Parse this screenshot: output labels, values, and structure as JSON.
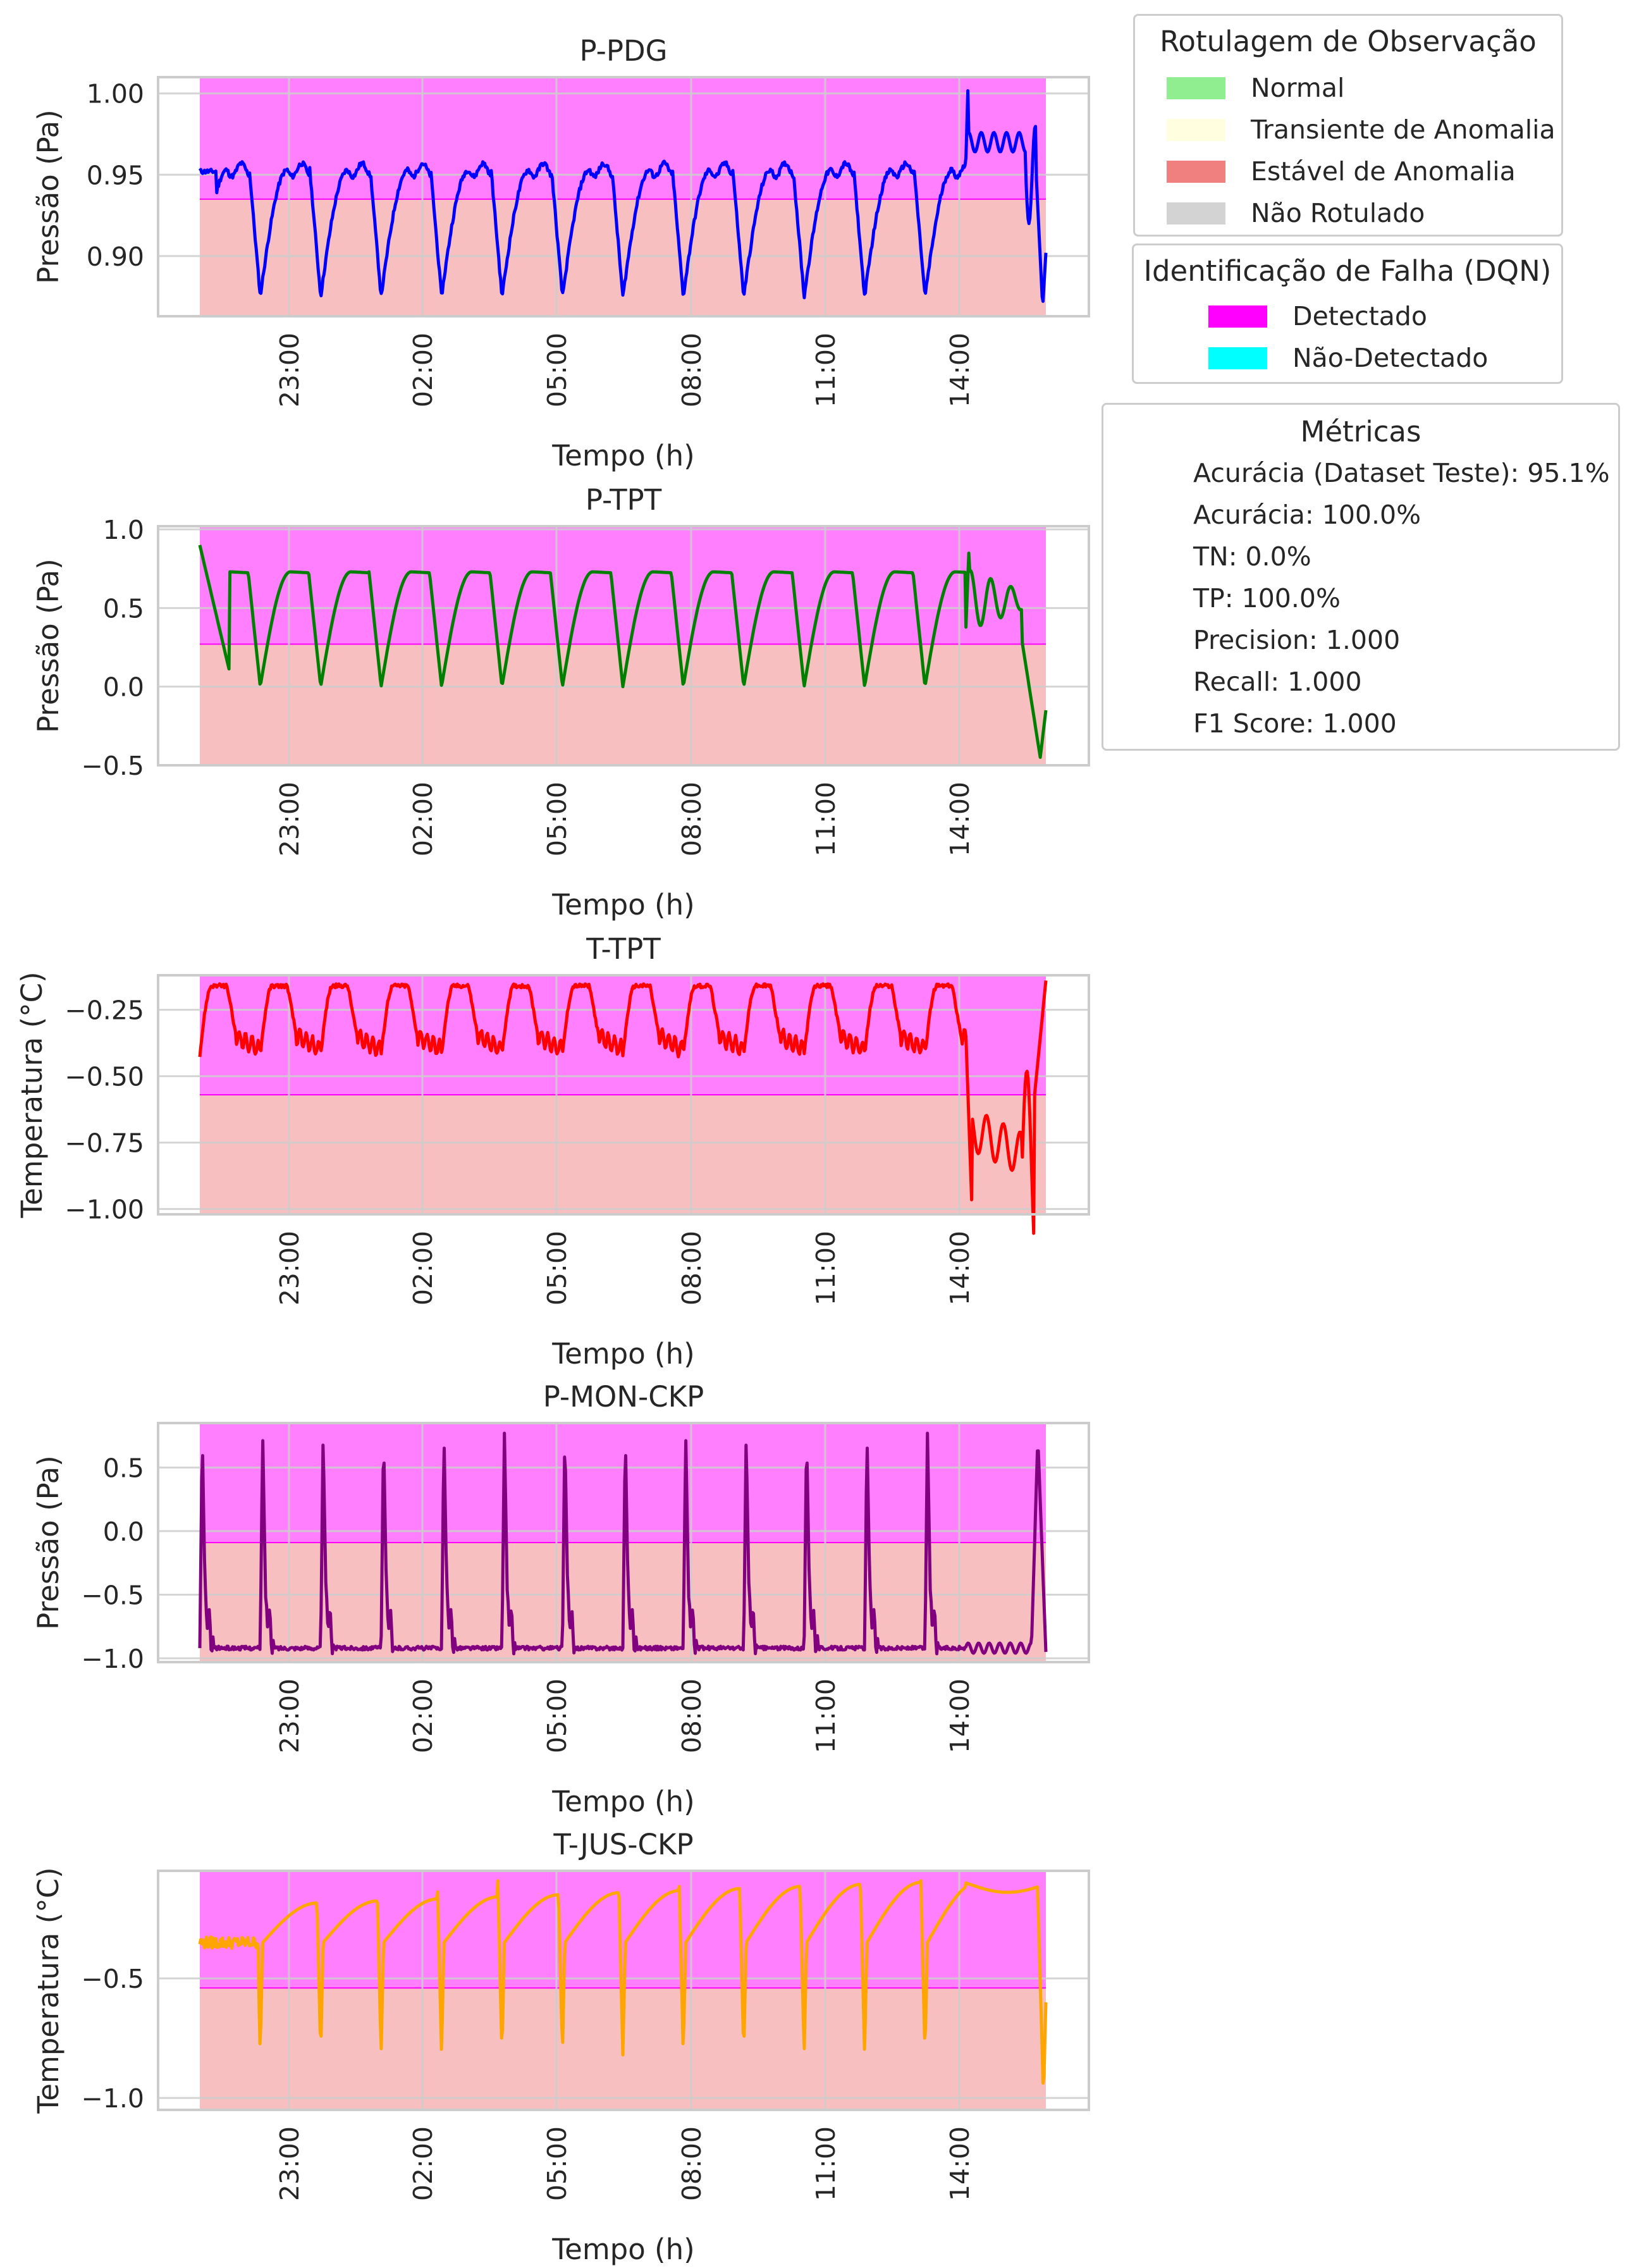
{
  "figure": {
    "legend_observacao": {
      "title": "Rotulagem de Observação",
      "items": [
        {
          "label": "Normal",
          "color": "#90ee90"
        },
        {
          "label": "Transiente de Anomalia",
          "color": "#ffffe0"
        },
        {
          "label": "Estável de Anomalia",
          "color": "#f08080"
        },
        {
          "label": "Não Rotulado",
          "color": "#d3d3d3"
        }
      ]
    },
    "legend_falha": {
      "title": "Identificação de Falha (DQN)",
      "items": [
        {
          "label": "Detectado",
          "color": "#ff00ff"
        },
        {
          "label": "Não-Detectado",
          "color": "#00ffff"
        }
      ]
    },
    "metricas": {
      "title": "Métricas",
      "items": [
        "Acurácia (Dataset Teste): 95.1%",
        "Acurácia: 100.0%",
        "TN: 0.0%",
        "TP: 100.0%",
        "Precision: 1.000",
        "Recall: 1.000",
        "F1 Score: 1.000"
      ]
    }
  },
  "chart_data": [
    {
      "type": "line",
      "title": "P-PDG",
      "xlabel": "Tempo (h)",
      "ylabel": "Pressão (Pa)",
      "x_ticks": [
        "23:00",
        "02:00",
        "05:00",
        "08:00",
        "11:00",
        "14:00"
      ],
      "ylim": [
        0.863,
        1.01
      ],
      "y_ticks": [
        0.9,
        0.95,
        1.0
      ],
      "y_tick_labels": [
        "0.90",
        "0.95",
        "1.00"
      ],
      "threshold": 0.935,
      "series": [
        {
          "color": "#0000ff",
          "shape": {
            "low": 0.875,
            "high": 0.953,
            "tail_high": 0.97,
            "tail_low": 0.868,
            "spike": 1.003,
            "end": 0.902
          }
        }
      ],
      "grid": true
    },
    {
      "type": "line",
      "title": "P-TPT",
      "xlabel": "Tempo (h)",
      "ylabel": "Pressão (Pa)",
      "x_ticks": [
        "23:00",
        "02:00",
        "05:00",
        "08:00",
        "11:00",
        "14:00"
      ],
      "ylim": [
        -0.5,
        1.02
      ],
      "y_ticks": [
        -0.5,
        0.0,
        0.5,
        1.0
      ],
      "y_tick_labels": [
        "−0.5",
        "0.0",
        "0.5",
        "1.0"
      ],
      "threshold": 0.27,
      "series": [
        {
          "color": "#008000",
          "shape": {
            "low": 0.0,
            "high": 0.73,
            "start": 0.9,
            "spike": 0.97,
            "tail_high": 0.55,
            "tail_low": -0.45,
            "end": -0.15
          }
        }
      ],
      "grid": true
    },
    {
      "type": "line",
      "title": "T-TPT",
      "xlabel": "Tempo (h)",
      "ylabel": "Temperatura (°C)",
      "x_ticks": [
        "23:00",
        "02:00",
        "05:00",
        "08:00",
        "11:00",
        "14:00"
      ],
      "ylim": [
        -1.02,
        -0.12
      ],
      "y_ticks": [
        -1.0,
        -0.75,
        -0.5,
        -0.25
      ],
      "y_tick_labels": [
        "−1.00",
        "−0.75",
        "−0.50",
        "−0.25"
      ],
      "threshold": -0.57,
      "series": [
        {
          "color": "#ff0000",
          "shape": {
            "low": -0.42,
            "high": -0.16,
            "tail_low": -1.0,
            "tail_mid": -0.7,
            "end": -0.14
          }
        }
      ],
      "grid": true
    },
    {
      "type": "line",
      "title": "P-MON-CKP",
      "xlabel": "Tempo (h)",
      "ylabel": "Pressão (Pa)",
      "x_ticks": [
        "23:00",
        "02:00",
        "05:00",
        "08:00",
        "11:00",
        "14:00"
      ],
      "ylim": [
        -1.03,
        0.85
      ],
      "y_ticks": [
        -1.0,
        -0.5,
        0.0,
        0.5
      ],
      "y_tick_labels": [
        "−1.0",
        "−0.5",
        "0.0",
        "0.5"
      ],
      "threshold": -0.09,
      "series": [
        {
          "color": "#800080",
          "shape": {
            "low": -0.92,
            "high": 0.77
          }
        }
      ],
      "grid": true
    },
    {
      "type": "line",
      "title": "T-JUS-CKP",
      "xlabel": "Tempo (h)",
      "ylabel": "Temperatura (°C)",
      "x_ticks": [
        "23:00",
        "02:00",
        "05:00",
        "08:00",
        "11:00",
        "14:00"
      ],
      "ylim": [
        -1.05,
        -0.05
      ],
      "y_ticks": [
        -1.0,
        -0.5
      ],
      "y_tick_labels": [
        "−1.0",
        "−0.5"
      ],
      "threshold": -0.54,
      "series": [
        {
          "color": "#ffa500",
          "shape": {
            "start": -0.35,
            "low": -0.82,
            "high": -0.08,
            "end": -1.0
          }
        }
      ],
      "grid": true
    }
  ]
}
